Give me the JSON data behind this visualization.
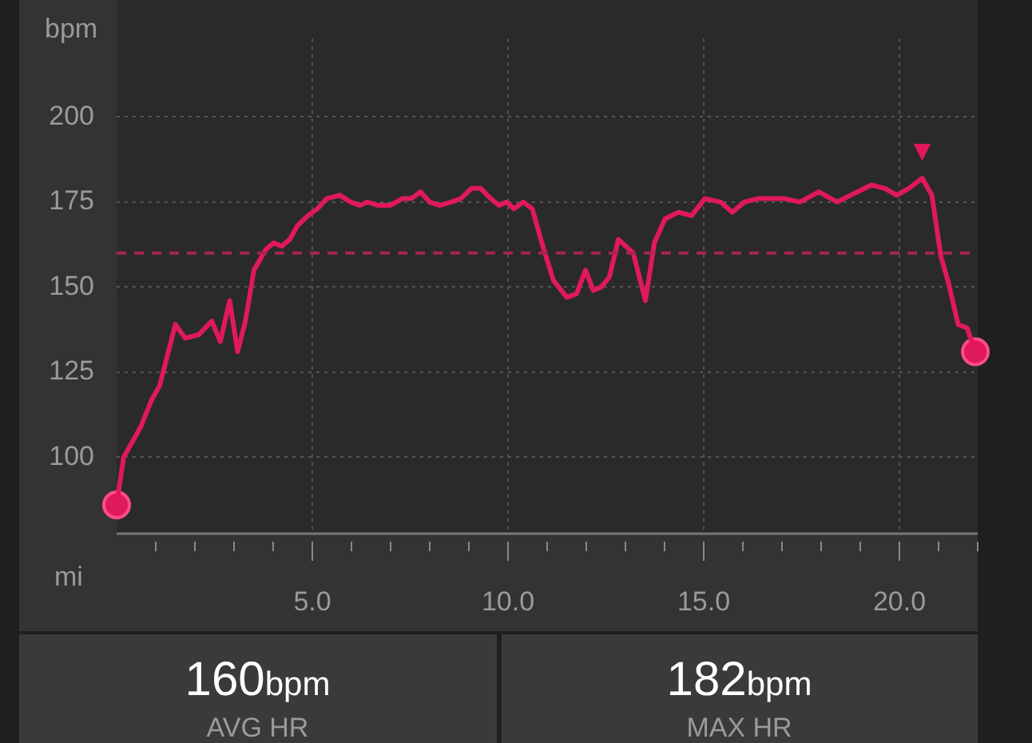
{
  "chart_data": {
    "type": "line",
    "xlabel": "mi",
    "ylabel": "bpm",
    "xlim": [
      0,
      22
    ],
    "ylim": [
      78,
      223
    ],
    "xticks": [
      {
        "value": 1,
        "label": null
      },
      {
        "value": 2,
        "label": null
      },
      {
        "value": 3,
        "label": null
      },
      {
        "value": 4,
        "label": null
      },
      {
        "value": 5,
        "label": "5.0"
      },
      {
        "value": 6,
        "label": null
      },
      {
        "value": 7,
        "label": null
      },
      {
        "value": 8,
        "label": null
      },
      {
        "value": 9,
        "label": null
      },
      {
        "value": 10,
        "label": "10.0"
      },
      {
        "value": 11,
        "label": null
      },
      {
        "value": 12,
        "label": null
      },
      {
        "value": 13,
        "label": null
      },
      {
        "value": 14,
        "label": null
      },
      {
        "value": 15,
        "label": "15.0"
      },
      {
        "value": 16,
        "label": null
      },
      {
        "value": 17,
        "label": null
      },
      {
        "value": 18,
        "label": null
      },
      {
        "value": 19,
        "label": null
      },
      {
        "value": 20,
        "label": "20.0"
      },
      {
        "value": 21,
        "label": null
      },
      {
        "value": 22,
        "label": null
      }
    ],
    "yticks": [
      100,
      125,
      150,
      175,
      200
    ],
    "grid": true,
    "legend": false,
    "series": [
      {
        "color": "#e0195a",
        "marker": "none",
        "line_style": "solid",
        "x": [
          0,
          0.18,
          0.62,
          0.9,
          1.1,
          1.5,
          1.75,
          2.1,
          2.43,
          2.65,
          2.89,
          3.09,
          3.29,
          3.51,
          3.81,
          4.01,
          4.22,
          4.42,
          4.62,
          4.89,
          5.13,
          5.37,
          5.7,
          5.98,
          6.22,
          6.41,
          6.68,
          6.99,
          7.3,
          7.53,
          7.76,
          8.0,
          8.25,
          8.55,
          8.79,
          9.07,
          9.3,
          9.56,
          9.77,
          9.97,
          10.15,
          10.39,
          10.62,
          10.89,
          11.16,
          11.5,
          11.75,
          11.98,
          12.18,
          12.38,
          12.59,
          12.82,
          13.2,
          13.51,
          13.74,
          14.01,
          14.35,
          14.69,
          15.03,
          15.43,
          15.73,
          16.04,
          16.38,
          17.06,
          17.46,
          17.94,
          18.41,
          18.75,
          19.29,
          19.63,
          19.93,
          20.24,
          20.58,
          20.83,
          21.06,
          21.26,
          21.5,
          21.73,
          21.94
        ],
        "values": [
          86,
          100,
          109,
          117,
          121,
          139,
          135,
          136,
          140,
          134,
          146,
          131,
          140,
          155,
          161,
          163,
          162,
          164,
          168,
          171,
          173,
          176,
          177,
          175,
          174,
          175,
          174,
          174,
          176,
          176,
          178,
          175,
          174,
          175,
          176,
          179,
          179,
          176,
          174,
          175,
          173,
          175,
          173,
          162,
          152,
          147,
          148,
          155,
          149,
          150,
          153,
          164,
          160,
          146,
          163,
          170,
          172,
          171,
          176,
          175,
          172,
          175,
          176,
          176,
          175,
          178,
          175,
          177,
          180,
          179,
          177,
          179,
          182,
          177,
          159,
          151,
          139,
          138,
          131
        ]
      },
      {
        "type": "scatter",
        "color": "#e0195a",
        "marker": "circle",
        "x": [
          0,
          21.94
        ],
        "values": [
          86,
          131
        ]
      }
    ],
    "ref_lines": [
      {
        "axis": "y",
        "value": 160,
        "color": "#a3264f",
        "line_style": "dashed"
      }
    ],
    "annotations": [
      {
        "text": "▼",
        "x": 20.58,
        "y": 182
      },
      "160bpm",
      "AVG HR",
      "182bpm",
      "MAX HR"
    ]
  }
}
